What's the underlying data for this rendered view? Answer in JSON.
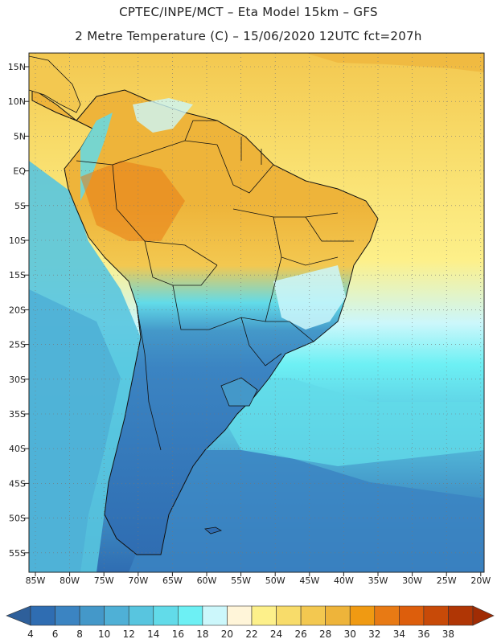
{
  "header": {
    "line1": "CPTEC/INPE/MCT –  Eta Model 15km – GFS",
    "line2": "2 Metre Temperature (C) – 15/06/2020 12UTC fct=207h"
  },
  "axes": {
    "lat_labels": [
      "15N",
      "10N",
      "5N",
      "EQ",
      "5S",
      "10S",
      "15S",
      "20S",
      "25S",
      "30S",
      "35S",
      "40S",
      "45S",
      "50S",
      "55S"
    ],
    "lon_labels": [
      "85W",
      "80W",
      "75W",
      "70W",
      "65W",
      "60W",
      "55W",
      "50W",
      "45W",
      "40W",
      "35W",
      "30W",
      "25W",
      "20W"
    ]
  },
  "colorbar": {
    "labels": [
      "4",
      "6",
      "8",
      "10",
      "12",
      "14",
      "16",
      "18",
      "20",
      "22",
      "24",
      "26",
      "28",
      "30",
      "32",
      "34",
      "36",
      "38"
    ],
    "colors": [
      "#2f6db2",
      "#3b84c2",
      "#4498c9",
      "#4fb0d6",
      "#58c5df",
      "#62dbe9",
      "#6df0f4",
      "#ccf7fb",
      "#fff5d9",
      "#fdf08a",
      "#f8dc6a",
      "#f3c850",
      "#eeb43a",
      "#f09a12",
      "#e87a14",
      "#dd5e0c",
      "#c84a08",
      "#b03605"
    ],
    "low_arrow_color": "#2e5f9a",
    "high_arrow_color": "#a02c04"
  },
  "map_colors": {
    "frame": "#222222",
    "ocean_south_deep": "#2f6db2",
    "ocean_south_mid": "#4498c9",
    "ocean_mid": "#58c5df",
    "ocean_light": "#6df0f4",
    "ocean_warm": "#f8dc6a",
    "ocean_tropical": "#f3c850",
    "land_hot": "#eeb43a",
    "land_warm": "#f8dc6a",
    "land_cool": "#62dbe9",
    "land_cold": "#2f6db2",
    "grid": "#777777"
  }
}
